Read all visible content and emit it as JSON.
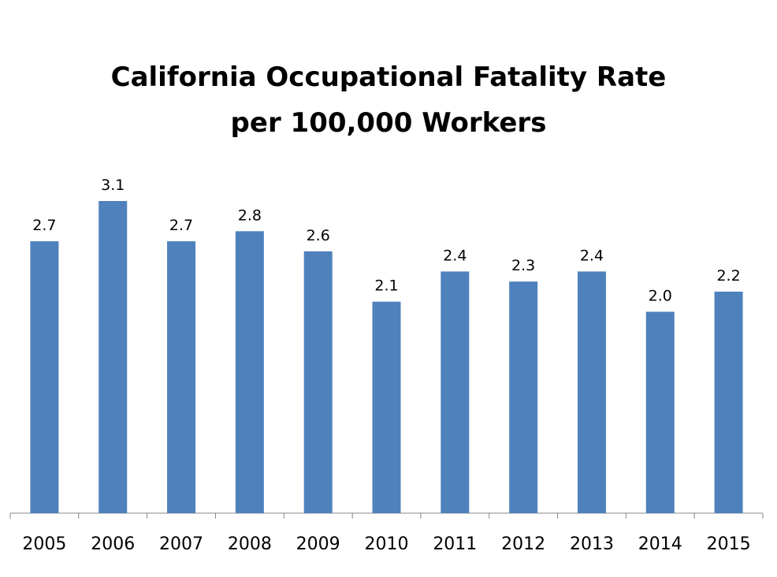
{
  "chart_data": {
    "type": "bar",
    "title_lines": [
      "California Occupational Fatality Rate",
      "per 100,000 Workers"
    ],
    "categories": [
      "2005",
      "2006",
      "2007",
      "2008",
      "2009",
      "2010",
      "2011",
      "2012",
      "2013",
      "2014",
      "2015"
    ],
    "values": [
      2.7,
      3.1,
      2.7,
      2.8,
      2.6,
      2.1,
      2.4,
      2.3,
      2.4,
      2.0,
      2.2
    ],
    "data_labels": [
      "2.7",
      "3.1",
      "2.7",
      "2.8",
      "2.6",
      "2.1",
      "2.4",
      "2.3",
      "2.4",
      "2.0",
      "2.2"
    ],
    "xlabel": "",
    "ylabel": "",
    "ylim": [
      0,
      3.1
    ],
    "grid": false,
    "legend": "none",
    "bar_color": "#4f81bd"
  }
}
